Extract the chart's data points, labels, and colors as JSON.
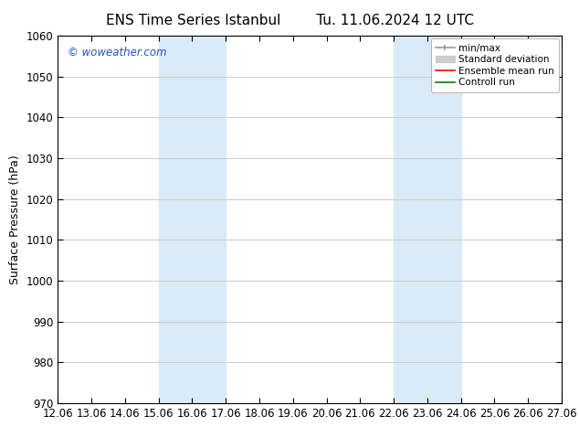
{
  "title_left": "ENS Time Series Istanbul",
  "title_right": "Tu. 11.06.2024 12 UTC",
  "ylabel": "Surface Pressure (hPa)",
  "xlabel": "",
  "ylim": [
    970,
    1060
  ],
  "yticks": [
    970,
    980,
    990,
    1000,
    1010,
    1020,
    1030,
    1040,
    1050,
    1060
  ],
  "xtick_labels": [
    "12.06",
    "13.06",
    "14.06",
    "15.06",
    "16.06",
    "17.06",
    "18.06",
    "19.06",
    "20.06",
    "21.06",
    "22.06",
    "23.06",
    "24.06",
    "25.06",
    "26.06",
    "27.06"
  ],
  "xtick_positions": [
    0,
    1,
    2,
    3,
    4,
    5,
    6,
    7,
    8,
    9,
    10,
    11,
    12,
    13,
    14,
    15
  ],
  "bg_color": "#ffffff",
  "plot_bg_color": "#ffffff",
  "shaded_bands": [
    {
      "x_start": 3,
      "x_end": 5,
      "color": "#daeaf7"
    },
    {
      "x_start": 10,
      "x_end": 12,
      "color": "#daeaf7"
    }
  ],
  "watermark_text": "© woweather.com",
  "watermark_color": "#2255bb",
  "legend_items": [
    {
      "label": "min/max"
    },
    {
      "label": "Standard deviation"
    },
    {
      "label": "Ensemble mean run"
    },
    {
      "label": "Controll run"
    }
  ],
  "title_fontsize": 11,
  "tick_fontsize": 8.5,
  "ylabel_fontsize": 9,
  "grid_color": "#cccccc",
  "legend_fontsize": 7.5,
  "minmax_color": "#999999",
  "stddev_color": "#cccccc",
  "mean_color": "#ff0000",
  "control_color": "#008000"
}
